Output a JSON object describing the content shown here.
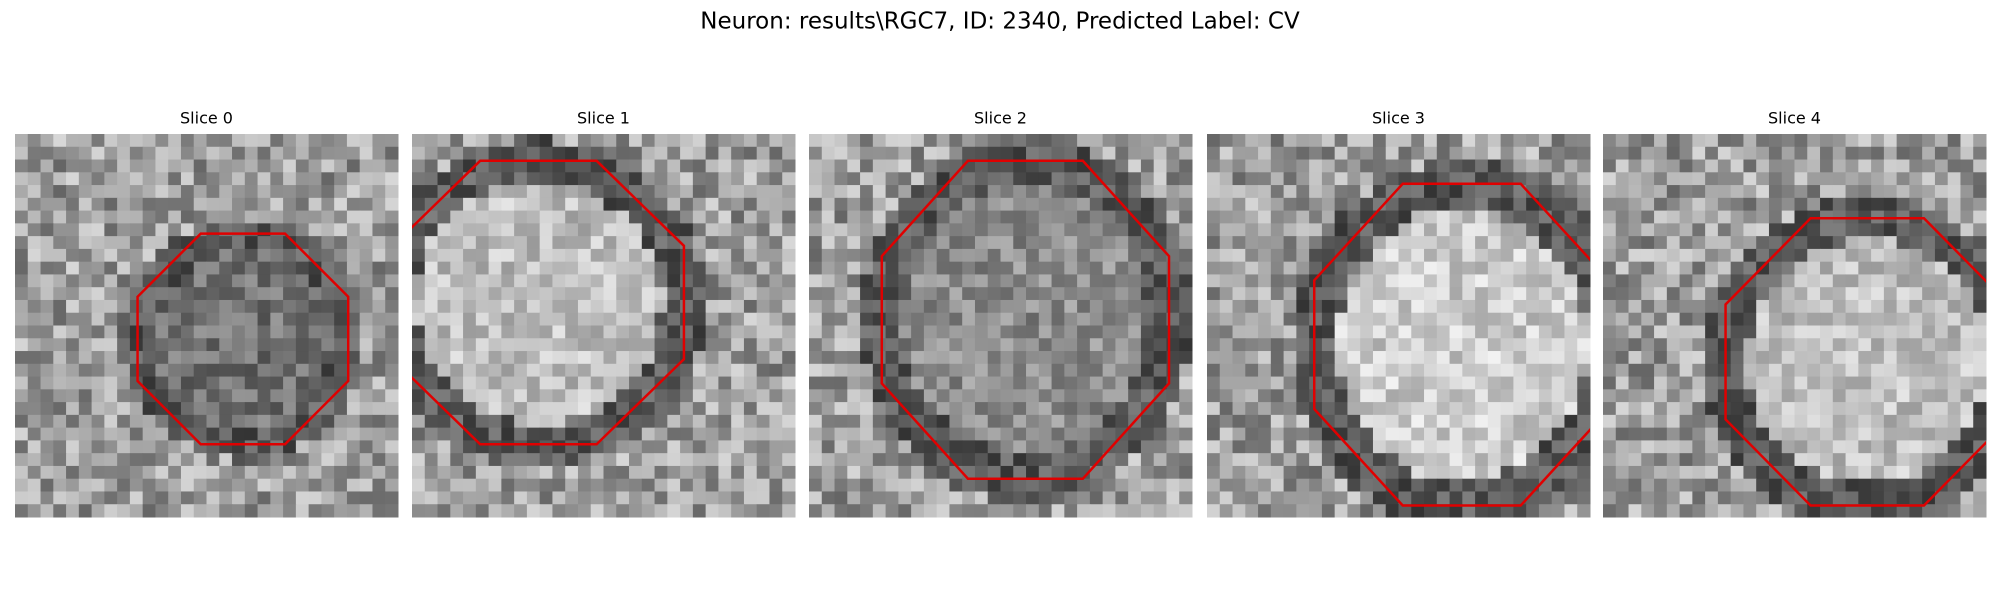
{
  "header": {
    "title": "Neuron: results\\RGC7, ID: 2340, Predicted Label: CV"
  },
  "panels": [
    {
      "title": "Slice 0"
    },
    {
      "title": "Slice 1"
    },
    {
      "title": "Slice 2"
    },
    {
      "title": "Slice 3"
    },
    {
      "title": "Slice 4"
    }
  ]
}
